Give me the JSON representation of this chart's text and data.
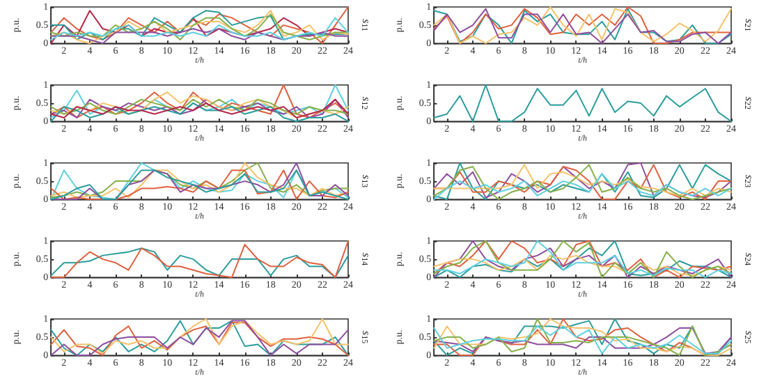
{
  "chart_data": [
    {
      "type": "line",
      "xlabel": "t/h",
      "ylabel": "p.u.",
      "y2label": "s$_{11}$",
      "xlim": [
        1,
        24
      ],
      "xticks": [
        2,
        4,
        6,
        8,
        10,
        12,
        14,
        16,
        18,
        20,
        22,
        24
      ],
      "ylim": [
        0,
        1
      ],
      "yticks": [
        0,
        0.5,
        1
      ],
      "x": [
        1,
        2,
        3,
        4,
        5,
        6,
        7,
        8,
        9,
        10,
        11,
        12,
        13,
        14,
        15,
        16,
        17,
        18,
        19,
        20,
        21,
        22,
        23,
        24
      ],
      "series": [
        {
          "color": "#e0603f",
          "values": [
            0.3,
            0.7,
            0.4,
            0.2,
            0.1,
            0.3,
            0.7,
            0.5,
            0.3,
            0.6,
            0.3,
            0.65,
            0.5,
            0.8,
            0.7,
            0.5,
            0.3,
            0.2,
            0.5,
            0.4,
            0.3,
            0,
            0.5,
            1
          ]
        },
        {
          "color": "#b5284a",
          "values": [
            0,
            0.5,
            0.2,
            0.9,
            0.4,
            0.3,
            0.5,
            0.2,
            0.4,
            0.3,
            0.3,
            0.7,
            0.2,
            0.4,
            0.3,
            0.2,
            0.3,
            0.4,
            0.7,
            0.5,
            0.2,
            0.3,
            0.4,
            0.3
          ]
        },
        {
          "color": "#2a9d9c",
          "values": [
            0.5,
            0.5,
            0.1,
            0.3,
            0.1,
            0.4,
            0.4,
            0.2,
            0.7,
            0.5,
            0.3,
            0.7,
            0.9,
            0.85,
            0.5,
            0.6,
            0.7,
            0.75,
            0.1,
            0.2,
            0.25,
            0.25,
            0.25,
            0.25
          ]
        },
        {
          "color": "#f5c26b",
          "values": [
            0.2,
            0.3,
            0.1,
            0,
            0.2,
            0.3,
            0.6,
            0.4,
            0.6,
            0.3,
            0.4,
            0.5,
            0.6,
            0.6,
            0.4,
            0.3,
            0.5,
            0.9,
            0.2,
            0.3,
            0.5,
            0.1,
            0.3,
            0.25
          ]
        },
        {
          "color": "#86b04a",
          "values": [
            0.3,
            0.2,
            0.3,
            0.2,
            0.2,
            0.5,
            0.3,
            0.4,
            0.6,
            0.4,
            0.1,
            0.5,
            0.7,
            0.7,
            0.4,
            0.2,
            0.4,
            0.8,
            0.3,
            0.2,
            0.1,
            0.2,
            0.3,
            0.3
          ]
        },
        {
          "color": "#8e4d9e",
          "values": [
            0.2,
            0.2,
            0.2,
            0.1,
            0,
            0.3,
            0.3,
            0.3,
            0.3,
            0.2,
            0.3,
            0.4,
            0.3,
            0.4,
            0.2,
            0.1,
            0.3,
            0.2,
            0.1,
            0.2,
            0.2,
            0.3,
            0.2,
            0.2
          ]
        },
        {
          "color": "#5fd0e0",
          "values": [
            0.1,
            0.3,
            0.2,
            0.3,
            0.2,
            0.4,
            0.5,
            0.2,
            0.2,
            0.3,
            0.2,
            0.3,
            0.2,
            0.5,
            0.3,
            0.2,
            0.2,
            0.3,
            0.1,
            0.2,
            0.3,
            0.2,
            0.7,
            0.3
          ]
        }
      ]
    },
    {
      "type": "line",
      "xlabel": "t/h",
      "ylabel": "p.u.",
      "y2label": "s$_{21}$",
      "xlim": [
        1,
        24
      ],
      "xticks": [
        2,
        4,
        6,
        8,
        10,
        12,
        14,
        16,
        18,
        20,
        22,
        24
      ],
      "ylim": [
        0,
        1
      ],
      "yticks": [
        0,
        0.5,
        1
      ],
      "x": [
        1,
        2,
        3,
        4,
        5,
        6,
        7,
        8,
        9,
        10,
        11,
        12,
        13,
        14,
        15,
        16,
        17,
        18,
        19,
        20,
        21,
        22,
        23,
        24
      ],
      "series": [
        {
          "color": "#2a9d9c",
          "values": [
            0.9,
            0.8,
            0.05,
            0.2,
            0.8,
            0.5,
            0,
            0.9,
            0.6,
            0.8,
            0.3,
            0.25,
            0.25,
            0.6,
            0.1,
            0.95,
            0.3,
            0.3,
            0.05,
            0.1,
            0.5,
            0,
            0,
            0.25
          ]
        },
        {
          "color": "#e0603f",
          "values": [
            0.4,
            0.75,
            0,
            0.3,
            0.8,
            0.4,
            0.5,
            0.95,
            0.7,
            0.25,
            0.3,
            0.8,
            0.5,
            0.8,
            0.5,
            1,
            0.75,
            0,
            0,
            0.1,
            0.3,
            0.3,
            0.3,
            0.3
          ]
        },
        {
          "color": "#f5c26b",
          "values": [
            0.5,
            0.8,
            0,
            0.2,
            0,
            0.25,
            0.3,
            0.7,
            0.5,
            1,
            0.5,
            0.2,
            0.8,
            0.1,
            0.95,
            0.85,
            0.3,
            0.05,
            0.25,
            0.55,
            0.35,
            0.05,
            0.35,
            0.95
          ]
        },
        {
          "color": "#8e4d9e",
          "values": [
            0.35,
            0.8,
            0.3,
            0.5,
            0.95,
            0.15,
            0.15,
            0.8,
            0.8,
            0.3,
            0.8,
            0.25,
            0.3,
            0,
            0.4,
            0.8,
            0.3,
            0.35,
            0.05,
            0.05,
            0.25,
            0.3,
            0,
            0.3
          ]
        }
      ]
    },
    {
      "type": "line",
      "xlabel": "t/h",
      "ylabel": "p.u.",
      "y2label": "s$_{12}$",
      "xlim": [
        1,
        24
      ],
      "xticks": [
        2,
        4,
        6,
        8,
        10,
        12,
        14,
        16,
        18,
        20,
        22,
        24
      ],
      "ylim": [
        0,
        1
      ],
      "yticks": [
        0,
        0.5,
        1
      ],
      "x": [
        1,
        2,
        3,
        4,
        5,
        6,
        7,
        8,
        9,
        10,
        11,
        12,
        13,
        14,
        15,
        16,
        17,
        18,
        19,
        20,
        21,
        22,
        23,
        24
      ],
      "series": [
        {
          "color": "#5fd0e0",
          "values": [
            0.1,
            0.3,
            0.85,
            0.2,
            0.4,
            0.3,
            0.2,
            0.3,
            0.6,
            0.4,
            0.2,
            0.5,
            0.3,
            0.4,
            0.6,
            0.3,
            0.5,
            0.4,
            0.2,
            0.3,
            0.4,
            0.2,
            1,
            0.3
          ]
        },
        {
          "color": "#e0603f",
          "values": [
            0.2,
            0.4,
            0.1,
            0.3,
            0.4,
            0.2,
            0.3,
            0.5,
            0.8,
            0.5,
            0.3,
            0.8,
            0.5,
            0.3,
            0.5,
            0.4,
            0.3,
            0.2,
            1,
            0.2,
            0.1,
            0.3,
            0.5,
            0.2
          ]
        },
        {
          "color": "#8e4d9e",
          "values": [
            0.2,
            0.3,
            0.1,
            0.6,
            0.4,
            0.3,
            0.5,
            0.4,
            0.3,
            0.4,
            0.2,
            0.3,
            0.6,
            0.4,
            0.3,
            0.4,
            0.5,
            0.3,
            0.2,
            0.4,
            0.1,
            0.2,
            0.6,
            0.1
          ]
        },
        {
          "color": "#f5c26b",
          "values": [
            0.3,
            0.2,
            0.4,
            0.3,
            0.5,
            0.4,
            0.2,
            0.3,
            0.6,
            0.8,
            0.5,
            0.7,
            0.6,
            0.4,
            0.3,
            0.5,
            0.6,
            0.4,
            0.3,
            0.1,
            0.2,
            0.3,
            0.2,
            0.4
          ]
        },
        {
          "color": "#86b04a",
          "values": [
            0.4,
            0.2,
            0.3,
            0.5,
            0.3,
            0.2,
            0.4,
            0.6,
            0.5,
            0.4,
            0.3,
            0.6,
            0.4,
            0.6,
            0.4,
            0.3,
            0.6,
            0.5,
            0.3,
            0.2,
            0.4,
            0.3,
            0.3,
            0.2
          ]
        },
        {
          "color": "#2a9d9c",
          "values": [
            0,
            0.4,
            0.3,
            0.1,
            0.2,
            0.4,
            0.2,
            0.3,
            0.4,
            0.3,
            0.2,
            0.5,
            0.3,
            0.3,
            0.4,
            0.2,
            0.3,
            0.4,
            0.1,
            0,
            0.1,
            0.1,
            0.2,
            0
          ]
        },
        {
          "color": "#b5284a",
          "values": [
            0.2,
            0.1,
            0.4,
            0.3,
            0.2,
            0.4,
            0.3,
            0.3,
            0.2,
            0.3,
            0.4,
            0.3,
            0.5,
            0.3,
            0.2,
            0.3,
            0.4,
            0.3,
            0.4,
            0.1,
            0.2,
            0.3,
            0.6,
            0.2
          ]
        }
      ]
    },
    {
      "type": "line",
      "xlabel": "t/h",
      "ylabel": "p.u.",
      "y2label": "s$_{22}$",
      "xlim": [
        1,
        24
      ],
      "xticks": [
        2,
        4,
        6,
        8,
        10,
        12,
        14,
        16,
        18,
        20,
        22,
        24
      ],
      "ylim": [
        0,
        1
      ],
      "yticks": [
        0,
        0.5,
        1
      ],
      "x": [
        1,
        2,
        3,
        4,
        5,
        6,
        7,
        8,
        9,
        10,
        11,
        12,
        13,
        14,
        15,
        16,
        17,
        18,
        19,
        20,
        21,
        22,
        23,
        24
      ],
      "series": [
        {
          "color": "#2a9d9c",
          "values": [
            0.1,
            0.2,
            0.7,
            0,
            1,
            0,
            0,
            0.25,
            0.9,
            0.45,
            0.45,
            0.85,
            0.15,
            0.9,
            0.25,
            0.55,
            0.5,
            0.15,
            0.7,
            0.4,
            0.65,
            0.9,
            0.25,
            0
          ]
        }
      ]
    },
    {
      "type": "line",
      "xlabel": "t/h",
      "ylabel": "p.u.",
      "y2label": "s$_{13}$",
      "xlim": [
        1,
        24
      ],
      "xticks": [
        2,
        4,
        6,
        8,
        10,
        12,
        14,
        16,
        18,
        20,
        22,
        24
      ],
      "ylim": [
        0,
        1
      ],
      "yticks": [
        0,
        0.5,
        1
      ],
      "x": [
        1,
        2,
        3,
        4,
        5,
        6,
        7,
        8,
        9,
        10,
        11,
        12,
        13,
        14,
        15,
        16,
        17,
        18,
        19,
        20,
        21,
        22,
        23,
        24
      ],
      "series": [
        {
          "color": "#5fd0e0",
          "values": [
            0,
            0.8,
            0.3,
            0.1,
            0.05,
            0,
            0.5,
            1,
            0.8,
            0.7,
            0.3,
            0.5,
            0.3,
            0.2,
            0.25,
            0.7,
            0.5,
            0.4,
            0.05,
            0.8,
            0.1,
            0.2,
            0.3,
            0.05
          ]
        },
        {
          "color": "#86b04a",
          "values": [
            0.05,
            0.1,
            0.2,
            0.1,
            0.2,
            0.5,
            0.5,
            0.5,
            0.8,
            0.7,
            0.4,
            0.3,
            0.5,
            0.3,
            0.5,
            0.8,
            1,
            0.3,
            0.2,
            0.4,
            0.1,
            0.25,
            0.3,
            0.3
          ]
        },
        {
          "color": "#f5c26b",
          "values": [
            0.1,
            0.2,
            0.05,
            0.1,
            0.1,
            0.3,
            0.05,
            0.4,
            0.8,
            0.8,
            0.5,
            0.3,
            0.4,
            0.2,
            0.4,
            1,
            0.6,
            0.4,
            0.3,
            0.3,
            0.1,
            0.3,
            0.1,
            0.2
          ]
        },
        {
          "color": "#e0603f",
          "values": [
            0.3,
            0,
            0.05,
            0,
            0,
            0,
            0.1,
            0.3,
            0.3,
            0.35,
            0.3,
            0.2,
            0.5,
            0.3,
            0.8,
            0.8,
            0.15,
            0.2,
            0.8,
            0,
            0.5,
            0.1,
            0.05,
            0.2
          ]
        },
        {
          "color": "#8e4d9e",
          "values": [
            0,
            0,
            0,
            0.3,
            0,
            0,
            0.4,
            0.5,
            0.8,
            0.7,
            0.2,
            0.4,
            0.3,
            0.3,
            0.4,
            0.5,
            0.4,
            0.2,
            0.4,
            1,
            0.1,
            0.1,
            0.4,
            0.1
          ]
        },
        {
          "color": "#2a9d9c",
          "values": [
            0,
            0.1,
            0.3,
            0.4,
            0,
            0,
            0.4,
            0.8,
            0.8,
            0.6,
            0.5,
            0.4,
            0.2,
            0.3,
            0.4,
            0.7,
            0.2,
            0.2,
            0.3,
            0.8,
            0.1,
            0.2,
            0.1,
            0
          ]
        }
      ]
    },
    {
      "type": "line",
      "xlabel": "t/h",
      "ylabel": "p.u.",
      "y2label": "s$_{23}$",
      "xlim": [
        1,
        24
      ],
      "xticks": [
        2,
        4,
        6,
        8,
        10,
        12,
        14,
        16,
        18,
        20,
        22,
        24
      ],
      "ylim": [
        0,
        1
      ],
      "yticks": [
        0,
        0.5,
        1
      ],
      "x": [
        1,
        2,
        3,
        4,
        5,
        6,
        7,
        8,
        9,
        10,
        11,
        12,
        13,
        14,
        15,
        16,
        17,
        18,
        19,
        20,
        21,
        22,
        23,
        24
      ],
      "series": [
        {
          "color": "#2a9d9c",
          "values": [
            0.1,
            0,
            1,
            0.3,
            0,
            0.5,
            0.4,
            0.3,
            0.4,
            0.2,
            0.4,
            0.3,
            0.2,
            0.7,
            0.2,
            0.75,
            0.1,
            0.05,
            0.3,
            0.95,
            0.3,
            0.95,
            0.7,
            0.5
          ]
        },
        {
          "color": "#8e4d9e",
          "values": [
            0.3,
            0.7,
            0.4,
            0.75,
            0.05,
            0.2,
            0.7,
            0.5,
            0.2,
            0.4,
            0.9,
            0.6,
            0.3,
            0.5,
            0.3,
            0.95,
            1,
            0.1,
            0.4,
            0.2,
            0.1,
            0.05,
            0.2,
            0.5
          ]
        },
        {
          "color": "#e0603f",
          "values": [
            0.3,
            0.3,
            0.75,
            0.2,
            0.2,
            0.5,
            0.4,
            0.2,
            0.5,
            0.4,
            0.9,
            0.8,
            0.5,
            0,
            0,
            0.5,
            0.3,
            0.95,
            0.2,
            0.05,
            0.2,
            0,
            0.5,
            0.5
          ]
        },
        {
          "color": "#f5c26b",
          "values": [
            0.3,
            0.3,
            0.3,
            0.3,
            0.3,
            0.3,
            0.4,
            0.95,
            0.3,
            0.7,
            0.75,
            0.6,
            0.4,
            0.5,
            0.4,
            0.55,
            0.35,
            0.3,
            0.2,
            0.1,
            0.3,
            0.1,
            0.3,
            0.2
          ]
        },
        {
          "color": "#86b04a",
          "values": [
            0.1,
            0.3,
            0.8,
            0.9,
            0.3,
            0,
            0.2,
            0.3,
            0.5,
            0.2,
            0.3,
            0.6,
            0.95,
            0.2,
            0.3,
            0.6,
            0.3,
            0.2,
            0.3,
            0.1,
            0,
            0.1,
            0.2,
            0.3
          ]
        },
        {
          "color": "#5fd0e0",
          "values": [
            0,
            0.3,
            0.5,
            0.3,
            0.4,
            0.2,
            0.3,
            0.5,
            0.1,
            0.3,
            0.5,
            0.4,
            0.2,
            0.7,
            0.3,
            0.5,
            0.2,
            0.1,
            0.4,
            0.2,
            0.1,
            0.3,
            0.1,
            0.3
          ]
        }
      ]
    },
    {
      "type": "line",
      "xlabel": "t/h",
      "ylabel": "p.u.",
      "y2label": "s$_{14}$",
      "xlim": [
        1,
        24
      ],
      "xticks": [
        2,
        4,
        6,
        8,
        10,
        12,
        14,
        16,
        18,
        20,
        22,
        24
      ],
      "ylim": [
        0,
        1
      ],
      "yticks": [
        0,
        0.5,
        1
      ],
      "x": [
        1,
        2,
        3,
        4,
        5,
        6,
        7,
        8,
        9,
        10,
        11,
        12,
        13,
        14,
        15,
        16,
        17,
        18,
        19,
        20,
        21,
        22,
        23,
        24
      ],
      "series": [
        {
          "color": "#2a9d9c",
          "values": [
            0.05,
            0.4,
            0.4,
            0.45,
            0.6,
            0.65,
            0.7,
            0.8,
            0.7,
            0.2,
            0.6,
            0.5,
            0.2,
            0.05,
            0.5,
            0.5,
            0.5,
            0.05,
            0.5,
            0.6,
            0.3,
            0.3,
            0,
            0.6
          ]
        },
        {
          "color": "#e0603f",
          "values": [
            0,
            0,
            0.4,
            0.7,
            0.5,
            0.4,
            0.2,
            0.8,
            0.6,
            0.3,
            0.3,
            0.2,
            0.1,
            0.05,
            0,
            0.9,
            0.5,
            0.3,
            0.3,
            0.55,
            0.4,
            0.35,
            0,
            1
          ]
        }
      ]
    },
    {
      "type": "line",
      "xlabel": "t/h",
      "ylabel": "p.u.",
      "y2label": "s$_{24}$",
      "xlim": [
        1,
        24
      ],
      "xticks": [
        2,
        4,
        6,
        8,
        10,
        12,
        14,
        16,
        18,
        20,
        22,
        24
      ],
      "ylim": [
        0,
        1
      ],
      "yticks": [
        0,
        0.5,
        1
      ],
      "x": [
        1,
        2,
        3,
        4,
        5,
        6,
        7,
        8,
        9,
        10,
        11,
        12,
        13,
        14,
        15,
        16,
        17,
        18,
        19,
        20,
        21,
        22,
        23,
        24
      ],
      "series": [
        {
          "color": "#2a9d9c",
          "values": [
            0,
            0.2,
            0,
            0.3,
            0.35,
            0.2,
            0.15,
            0.5,
            0.3,
            0.5,
            0.2,
            0.5,
            0.8,
            0.6,
            1,
            0.1,
            0.05,
            0.1,
            0.2,
            0.45,
            0.3,
            0.3,
            0.2,
            0
          ]
        },
        {
          "color": "#e0603f",
          "values": [
            0.1,
            0.4,
            0.3,
            0.6,
            1,
            0.5,
            1,
            0.8,
            0.4,
            0.5,
            0.3,
            0.9,
            1,
            0.3,
            0.4,
            0.2,
            0.5,
            0,
            0.2,
            0,
            0.3,
            0.25,
            0.2,
            0.3
          ]
        },
        {
          "color": "#8e4d9e",
          "values": [
            0,
            0.4,
            0.5,
            1,
            0.5,
            0.3,
            0.2,
            0.5,
            0.6,
            0.8,
            0.3,
            0.5,
            0.6,
            0.3,
            0.6,
            0,
            0.3,
            0.1,
            0.3,
            0.2,
            0.1,
            0.3,
            0.5,
            0
          ]
        },
        {
          "color": "#f5c26b",
          "values": [
            0.3,
            0.4,
            0.5,
            0.5,
            0.4,
            0.2,
            0.3,
            0.5,
            0.2,
            0.6,
            0.5,
            0.6,
            0.4,
            0.3,
            0.3,
            0.1,
            0.4,
            0.2,
            0.3,
            0.1,
            0.05,
            0.2,
            0.3,
            0.2
          ]
        },
        {
          "color": "#86b04a",
          "values": [
            0.1,
            0.3,
            0.4,
            0.8,
            1,
            0.4,
            0.2,
            0.2,
            0.2,
            0.5,
            1,
            0.7,
            0.95,
            0,
            0.4,
            0.1,
            0.4,
            0,
            0.7,
            0.3,
            0,
            0.2,
            0.3,
            0.1
          ]
        },
        {
          "color": "#5fd0e0",
          "values": [
            0.2,
            0.2,
            0.1,
            0.3,
            0.5,
            0.4,
            0.3,
            0.4,
            1,
            0.7,
            0.2,
            0.4,
            0.4,
            0.4,
            0.6,
            0.1,
            0.2,
            0.05,
            0.25,
            0.2,
            0.2,
            0,
            0.2,
            0.1
          ]
        }
      ]
    },
    {
      "type": "line",
      "xlabel": "t/h",
      "ylabel": "p.u.",
      "y2label": "s$_{15}$",
      "xlim": [
        1,
        24
      ],
      "xticks": [
        2,
        4,
        6,
        8,
        10,
        12,
        14,
        16,
        18,
        20,
        22,
        24
      ],
      "ylim": [
        0,
        1
      ],
      "yticks": [
        0,
        0.5,
        1
      ],
      "x": [
        1,
        2,
        3,
        4,
        5,
        6,
        7,
        8,
        9,
        10,
        11,
        12,
        13,
        14,
        15,
        16,
        17,
        18,
        19,
        20,
        21,
        22,
        23,
        24
      ],
      "series": [
        {
          "color": "#2a9d9c",
          "values": [
            0.7,
            0.2,
            0,
            0.3,
            0.1,
            0.5,
            0.1,
            0.3,
            0.1,
            0.4,
            0.95,
            0.3,
            0.75,
            0.75,
            0.95,
            0.25,
            0.3,
            0,
            0.4,
            0.3,
            0.3,
            0.3,
            0.5,
            0
          ]
        },
        {
          "color": "#e0603f",
          "values": [
            0.3,
            0.7,
            0.25,
            0.2,
            0,
            0.55,
            0.8,
            0.2,
            0.4,
            0.15,
            0.5,
            0.7,
            0.8,
            0.3,
            0.9,
            0.9,
            0.5,
            0.25,
            0.45,
            0.45,
            0.5,
            0.45,
            0.3,
            0
          ]
        },
        {
          "color": "#f5c26b",
          "values": [
            0.5,
            0.1,
            0.3,
            0.3,
            0.05,
            0.4,
            0.3,
            0.4,
            0.2,
            0.2,
            0.5,
            0.8,
            1,
            0.3,
            0.8,
            0.95,
            0.6,
            0.3,
            0.4,
            0.3,
            0.4,
            1,
            0.3,
            0.3
          ]
        },
        {
          "color": "#8e4d9e",
          "values": [
            0,
            0.3,
            0,
            0,
            0.3,
            0.45,
            0.5,
            0.5,
            0.5,
            0.2,
            0.5,
            0.3,
            0.75,
            0.5,
            0.95,
            0.95,
            0.5,
            0,
            0.3,
            0.05,
            0.3,
            0.3,
            0.3,
            0.7
          ]
        }
      ]
    },
    {
      "type": "line",
      "xlabel": "t/h",
      "ylabel": "p.u.",
      "y2label": "s$_{25}$",
      "xlim": [
        1,
        24
      ],
      "xticks": [
        2,
        4,
        6,
        8,
        10,
        12,
        14,
        16,
        18,
        20,
        22,
        24
      ],
      "ylim": [
        0,
        1
      ],
      "yticks": [
        0,
        0.5,
        1
      ],
      "x": [
        1,
        2,
        3,
        4,
        5,
        6,
        7,
        8,
        9,
        10,
        11,
        12,
        13,
        14,
        15,
        16,
        17,
        18,
        19,
        20,
        21,
        22,
        23,
        24
      ],
      "series": [
        {
          "color": "#2a9d9c",
          "values": [
            0.4,
            0,
            0.2,
            0.05,
            0.5,
            0.4,
            0.3,
            0.8,
            0.8,
            0.8,
            0.75,
            0.85,
            0.95,
            0.3,
            1,
            0.4,
            0.3,
            0.05,
            0.3,
            0.2,
            0.8,
            0,
            0.05,
            0.5
          ]
        },
        {
          "color": "#e0603f",
          "values": [
            0.3,
            0.3,
            0,
            0,
            0.5,
            0.4,
            0.3,
            0.3,
            0.7,
            0.3,
            1,
            0.5,
            0.4,
            0.45,
            0.7,
            0.75,
            0.5,
            0.3,
            0.1,
            0.35,
            0.2,
            0,
            0.1,
            0.3
          ]
        },
        {
          "color": "#8e4d9e",
          "values": [
            0.4,
            0.35,
            0.3,
            0.1,
            0.5,
            0.4,
            0.35,
            0.4,
            0.3,
            0.3,
            0.3,
            0.2,
            0.5,
            0.5,
            0.2,
            0.2,
            0.2,
            0.3,
            0.5,
            0.75,
            0.75,
            0.05,
            0.1,
            0.5
          ]
        },
        {
          "color": "#f5c26b",
          "values": [
            0.2,
            0.8,
            0.3,
            0.3,
            0.3,
            0.5,
            0.45,
            0.5,
            0.6,
            1,
            0.8,
            0.75,
            0.75,
            0.65,
            0.4,
            0.45,
            0.2,
            0.2,
            0.1,
            0.25,
            0.2,
            0,
            0,
            0.2
          ]
        },
        {
          "color": "#86b04a",
          "values": [
            0.4,
            0.5,
            0.5,
            0.2,
            0.3,
            0.5,
            0.1,
            0.2,
            1,
            0.35,
            0.35,
            0.4,
            0.35,
            0.5,
            0.5,
            0.5,
            0.4,
            0.3,
            0.2,
            0,
            0.8,
            0,
            0.1,
            0.3
          ]
        },
        {
          "color": "#5fd0e0",
          "values": [
            0.75,
            0.2,
            0.3,
            0.4,
            0.45,
            0.45,
            0.4,
            0.4,
            0.8,
            0.55,
            0.8,
            0.5,
            0.7,
            0.05,
            0.5,
            0.2,
            0.3,
            0.2,
            0.3,
            0.55,
            0.3,
            0.05,
            0.05,
            0.4
          ]
        }
      ]
    }
  ]
}
